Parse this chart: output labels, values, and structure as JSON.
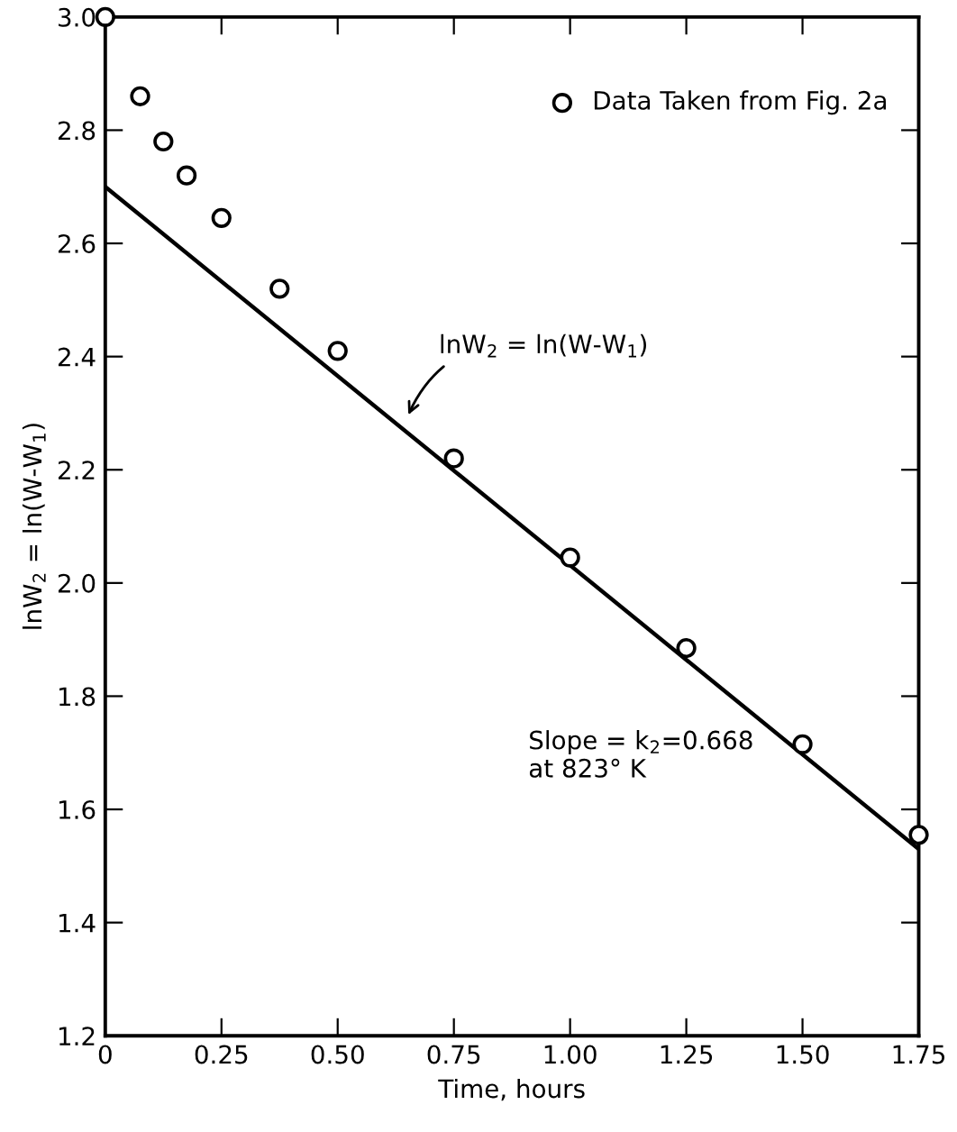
{
  "chart_data": {
    "type": "scatter",
    "xlabel": "Time, hours",
    "ylabel": "lnW$_{2}$ = ln(W-W$_{1}$)",
    "xlim": [
      0,
      1.75
    ],
    "ylim": [
      1.2,
      3.0
    ],
    "xticks": [
      {
        "value": 0,
        "label": "0"
      },
      0.25,
      {
        "value": 0.5,
        "label": "0.50"
      },
      0.75,
      {
        "value": 1.0,
        "label": "1.00"
      },
      1.25,
      {
        "value": 1.5,
        "label": "1.50"
      },
      1.75
    ],
    "yticks": [
      1.2,
      1.4,
      1.6,
      1.8,
      {
        "value": 2.0,
        "label": "2.0"
      },
      2.2,
      2.4,
      2.6,
      2.8,
      {
        "value": 3.0,
        "label": "3.0"
      }
    ],
    "grid": false,
    "legend": "top right",
    "marker": "circle",
    "series": [
      {
        "name": "Data Taken from Fig. 2a",
        "color": "#000000",
        "x": [
          0,
          0.075,
          0.125,
          0.175,
          0.25,
          0.375,
          0.5,
          0.75,
          1.0,
          1.25,
          1.5,
          1.75
        ],
        "values": [
          3.0,
          2.86,
          2.78,
          2.72,
          2.645,
          2.52,
          2.41,
          2.22,
          2.045,
          1.885,
          1.715,
          1.555
        ]
      },
      {
        "type": "line",
        "color": "#000000",
        "marker": "none",
        "line_style": "solid",
        "x": [
          0,
          1.75
        ],
        "values": [
          2.7,
          1.53
        ]
      }
    ],
    "annotations": [
      "lnW$_{2}$ = ln(W-W$_{1}$)",
      "Slope = k$_{2}$=0.668\nat 823° K"
    ]
  }
}
